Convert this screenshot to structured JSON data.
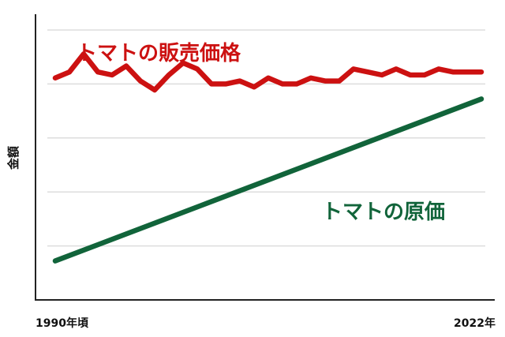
{
  "chart_data": {
    "type": "line",
    "title": "",
    "ylabel": "金額",
    "xlabel": "",
    "x_tick_labels": [
      "1990年頃",
      "2022年"
    ],
    "xlim": [
      0,
      30
    ],
    "ylim": [
      0,
      100
    ],
    "grid": true,
    "legend": "none",
    "series": [
      {
        "name": "トマトの販売価格",
        "color": "#cc1111",
        "x": [
          0,
          1,
          2,
          3,
          4,
          5,
          6,
          7,
          8,
          9,
          10,
          11,
          12,
          13,
          14,
          15,
          16,
          17,
          18,
          19,
          20,
          21,
          22,
          23,
          24,
          25,
          26,
          27,
          28,
          29,
          30
        ],
        "values": [
          74,
          76,
          82,
          76,
          75,
          78,
          73,
          70,
          75,
          79,
          77,
          72,
          72,
          73,
          71,
          74,
          72,
          72,
          74,
          73,
          73,
          77,
          76,
          75,
          77,
          75,
          75,
          77,
          76,
          76,
          76
        ]
      },
      {
        "name": "トマトの原価",
        "color": "#11643a",
        "x": [
          0,
          30
        ],
        "values": [
          13,
          67
        ]
      }
    ]
  }
}
